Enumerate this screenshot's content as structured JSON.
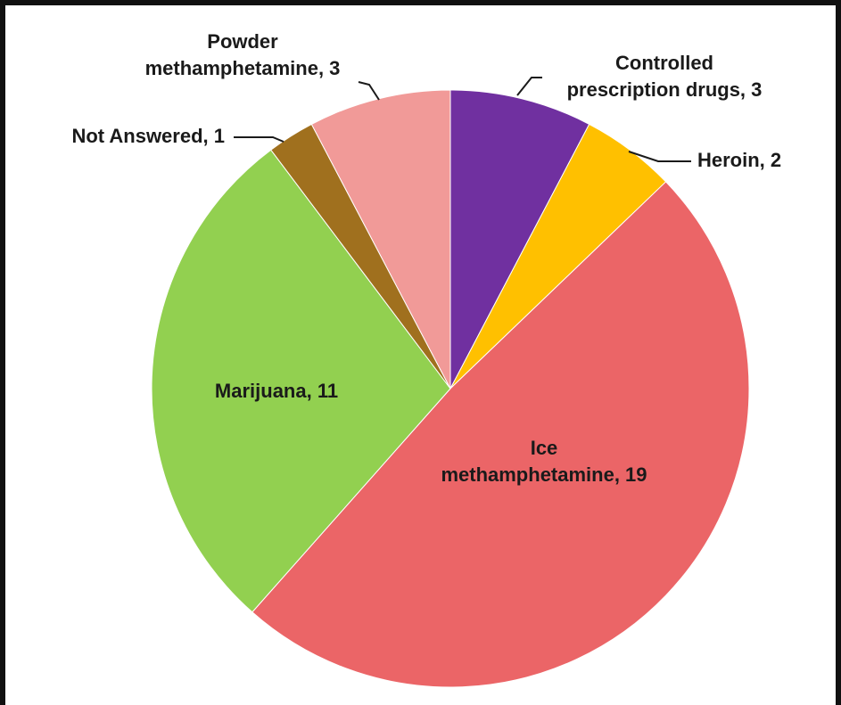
{
  "chart_data": {
    "type": "pie",
    "title": "",
    "slices": [
      {
        "name": "Controlled prescription drugs",
        "value": 3,
        "color": "#7030a0",
        "label_lines": [
          "Controlled",
          "prescription drugs, 3"
        ]
      },
      {
        "name": "Heroin",
        "value": 2,
        "color": "#ffc000",
        "label_lines": [
          "Heroin, 2"
        ]
      },
      {
        "name": "Ice methamphetamine",
        "value": 19,
        "color": "#eb6567",
        "label_lines": [
          "Ice",
          "methamphetamine, 19"
        ]
      },
      {
        "name": "Marijuana",
        "value": 11,
        "color": "#92d050",
        "label_lines": [
          "Marijuana, 11"
        ]
      },
      {
        "name": "Not Answered",
        "value": 1,
        "color": "#a0701e",
        "label_lines": [
          "Not Answered, 1"
        ]
      },
      {
        "name": "Powder methamphetamine",
        "value": 3,
        "color": "#f19a98",
        "label_lines": [
          "Powder",
          "methamphetamine, 3"
        ]
      }
    ]
  }
}
